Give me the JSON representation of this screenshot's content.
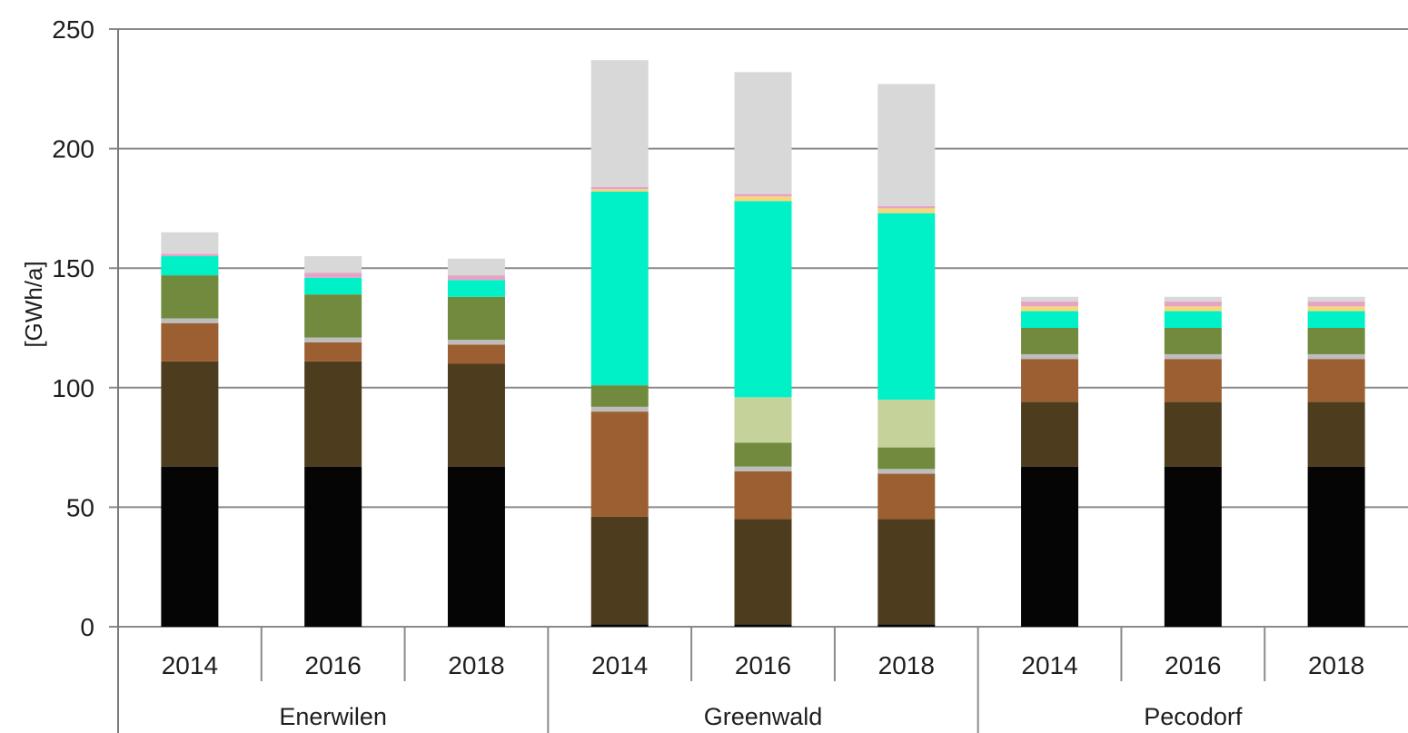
{
  "chart_data": {
    "type": "bar",
    "stacked": true,
    "title": "",
    "ylabel": "[GWh/a]",
    "xlabel": "",
    "ylim": [
      0,
      250
    ],
    "yticks": [
      0,
      50,
      100,
      150,
      200,
      250
    ],
    "grid": true,
    "groups": [
      {
        "label": "Enerwilen",
        "categories": [
          "2014",
          "2016",
          "2018"
        ]
      },
      {
        "label": "Greenwald",
        "categories": [
          "2014",
          "2016",
          "2018"
        ]
      },
      {
        "label": "Pecodorf",
        "categories": [
          "2014",
          "2016",
          "2018"
        ]
      }
    ],
    "colors": [
      "#050505",
      "#4d3d1e",
      "#9b5f31",
      "#bdbdbd",
      "#718a3d",
      "#c5d39a",
      "#00f0c8",
      "#f5d87a",
      "#e6a3c6",
      "#d8d8d8"
    ],
    "series": [
      {
        "values": [
          67,
          67,
          67,
          1,
          1,
          1,
          67,
          67,
          67
        ]
      },
      {
        "values": [
          44,
          44,
          43,
          45,
          44,
          44,
          27,
          27,
          27
        ]
      },
      {
        "values": [
          16,
          8,
          8,
          44,
          20,
          19,
          18,
          18,
          18
        ]
      },
      {
        "values": [
          2,
          2,
          2,
          2,
          2,
          2,
          2,
          2,
          2
        ]
      },
      {
        "values": [
          18,
          18,
          18,
          9,
          10,
          9,
          11,
          11,
          11
        ]
      },
      {
        "values": [
          0,
          0,
          0,
          0,
          19,
          20,
          0,
          0,
          0
        ]
      },
      {
        "values": [
          8,
          7,
          7,
          81,
          82,
          78,
          7,
          7,
          7
        ]
      },
      {
        "values": [
          0,
          0,
          0,
          1,
          2,
          2,
          2,
          2,
          2
        ]
      },
      {
        "values": [
          1,
          2,
          2,
          1,
          1,
          1,
          2,
          2,
          2
        ]
      },
      {
        "values": [
          9,
          7,
          7,
          53,
          51,
          51,
          2,
          2,
          2
        ]
      }
    ]
  }
}
